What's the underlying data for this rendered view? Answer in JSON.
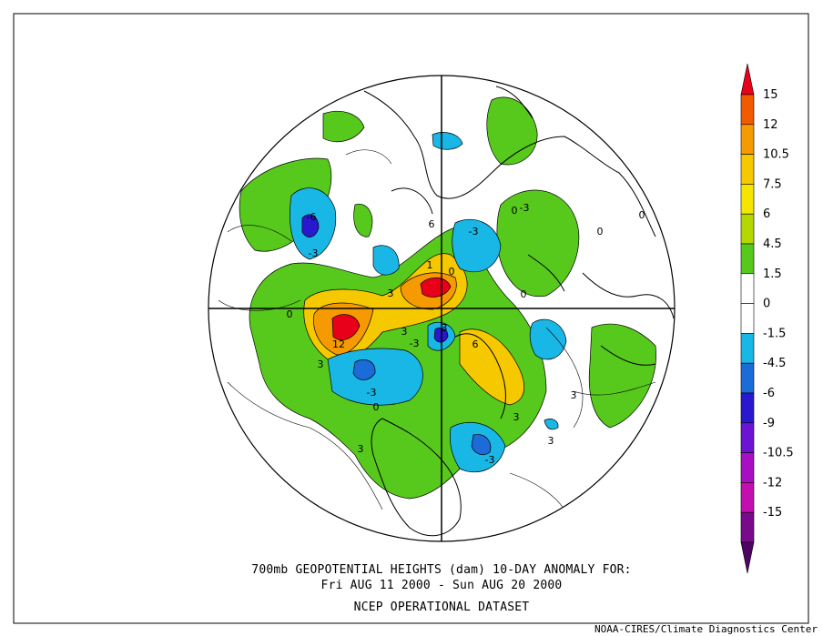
{
  "map": {
    "title_line1": "700mb GEOPOTENTIAL HEIGHTS (dam)   10-DAY ANOMALY FOR:",
    "title_line2": "Fri AUG 11 2000 - Sun AUG 20 2000",
    "dataset": "NCEP OPERATIONAL DATASET",
    "credit": "NOAA-CIRES/Climate Diagnostics Center",
    "projection": "polar stereographic, Northern Hemisphere",
    "contour_labels": [
      "-6",
      "-3",
      "0",
      "3",
      "6",
      "12",
      "3",
      "-3",
      "0",
      "3",
      "-3",
      "6",
      "0",
      "3",
      "-3",
      "0",
      "-3",
      "3",
      "0",
      "3",
      "-3",
      "3",
      "3",
      "0",
      "0",
      "1"
    ]
  },
  "colorbar": {
    "labels": [
      "15",
      "12",
      "10.5",
      "7.5",
      "6",
      "4.5",
      "1.5",
      "0",
      "-1.5",
      "-4.5",
      "-6",
      "-9",
      "-10.5",
      "-12",
      "-15"
    ],
    "colors": [
      "#e8001a",
      "#f25a00",
      "#f59a00",
      "#f6c800",
      "#f4e600",
      "#b5d700",
      "#57c81c",
      "#ffffff",
      "#ffffff",
      "#19b7e6",
      "#1b6bd8",
      "#2a18cf",
      "#6c14d3",
      "#a90fc2",
      "#c30fb0",
      "#7a0a8c",
      "#4d0563"
    ]
  }
}
